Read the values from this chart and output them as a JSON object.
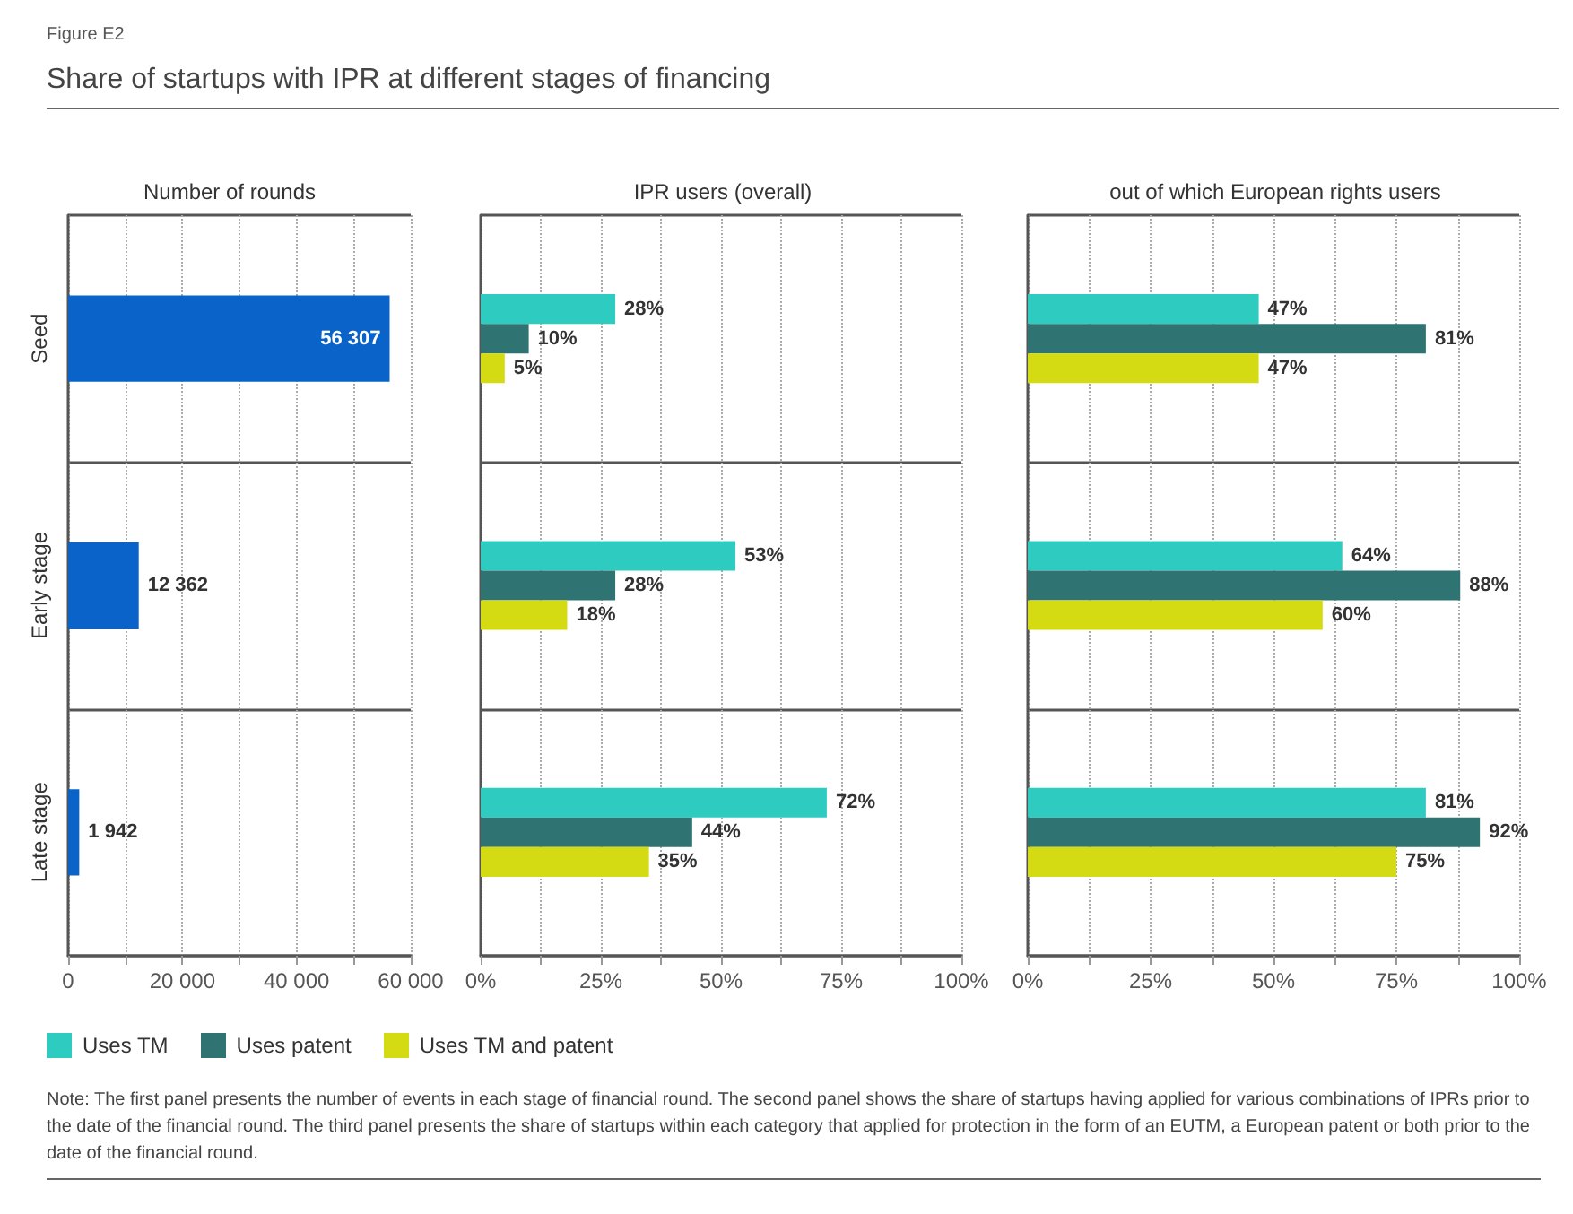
{
  "chart_data": [
    {
      "type": "bar",
      "orientation": "horizontal",
      "title": "Share of startups with IPR at different stages of financing",
      "subtitle": "Number of rounds",
      "annotations": [
        "Figure E2",
        "Note: The first panel presents the number of events in each stage of financial round. The second panel shows the share of startups having applied for various combinations of IPRs prior to the date of the financial round. The third panel presents the share of startups within each category that applied for protection in the form of an EUTM, a European patent or both prior to the date of the financial round."
      ],
      "categories": [
        "Seed",
        "Early stage",
        "Late stage"
      ],
      "values": [
        56307,
        12362,
        1942
      ],
      "color": "#0a63c9",
      "value_labels": [
        "56 307",
        "12 362",
        "1 942"
      ],
      "xlim": [
        0,
        60000
      ],
      "xticks": [
        0,
        {
          "value": 10000,
          "label": null
        },
        {
          "value": 20000,
          "label": "20 000"
        },
        {
          "value": 30000,
          "label": null
        },
        {
          "value": 40000,
          "label": "40 000"
        },
        {
          "value": 50000,
          "label": null
        },
        {
          "value": 60000,
          "label": "60 000"
        }
      ],
      "grid": true
    },
    {
      "type": "bar",
      "orientation": "horizontal",
      "title": "IPR users (overall)",
      "categories": [
        null,
        null,
        null
      ],
      "tick_labels": "x",
      "legend": "bottom left",
      "series": [
        {
          "name": "Uses TM",
          "color": "#2ecbc0",
          "values": [
            28,
            53,
            72
          ],
          "value_labels": [
            "28%",
            "53%",
            "72%"
          ]
        },
        {
          "name": "Uses patent",
          "color": "#2f7472",
          "values": [
            10,
            28,
            44
          ],
          "value_labels": [
            "10%",
            "28%",
            "44%"
          ]
        },
        {
          "name": "Uses TM and patent",
          "color": "#d4db12",
          "values": [
            5,
            18,
            35
          ],
          "value_labels": [
            "5%",
            "18%",
            "35%"
          ]
        }
      ],
      "xlim": [
        0,
        100
      ],
      "xticks": [
        {
          "value": 0,
          "label": "0%"
        },
        {
          "value": 12.5,
          "label": null
        },
        {
          "value": 25,
          "label": "25%"
        },
        {
          "value": 37.5,
          "label": null
        },
        {
          "value": 50,
          "label": "50%"
        },
        {
          "value": 62.5,
          "label": null
        },
        {
          "value": 75,
          "label": "75%"
        },
        {
          "value": 87.5,
          "label": null
        },
        {
          "value": 100,
          "label": "100%"
        }
      ],
      "grid": true
    },
    {
      "type": "bar",
      "orientation": "horizontal",
      "title": "out of which European rights users",
      "categories": [
        null,
        null,
        null
      ],
      "tick_labels": "x",
      "series": [
        {
          "color": "#2ecbc0",
          "values": [
            47,
            64,
            81
          ],
          "value_labels": [
            "47%",
            "64%",
            "81%"
          ]
        },
        {
          "color": "#2f7472",
          "values": [
            81,
            88,
            92
          ],
          "value_labels": [
            "81%",
            "88%",
            "92%"
          ]
        },
        {
          "color": "#d4db12",
          "values": [
            47,
            60,
            75
          ],
          "value_labels": [
            "47%",
            "60%",
            "75%"
          ]
        }
      ],
      "xlim": [
        0,
        100
      ],
      "xticks": [
        {
          "value": 0,
          "label": "0%"
        },
        {
          "value": 12.5,
          "label": null
        },
        {
          "value": 25,
          "label": "25%"
        },
        {
          "value": 37.5,
          "label": null
        },
        {
          "value": 50,
          "label": "50%"
        },
        {
          "value": 62.5,
          "label": null
        },
        {
          "value": 75,
          "label": "75%"
        },
        {
          "value": 87.5,
          "label": null
        },
        {
          "value": 100,
          "label": "100%"
        }
      ],
      "grid": true
    }
  ]
}
